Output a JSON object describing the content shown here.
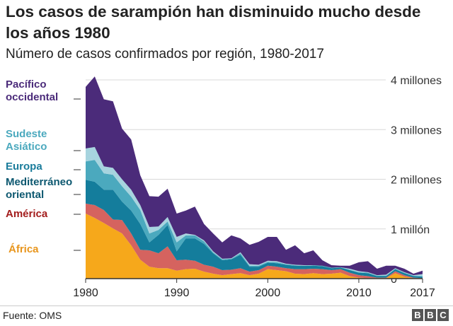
{
  "title": "Los casos de sarampión han disminuido mucho desde los años 1980",
  "subtitle": "Número de casos confirmados por región, 1980-2017",
  "source": "Fuente: OMS",
  "logo": [
    "B",
    "B",
    "C"
  ],
  "chart_data": {
    "type": "area",
    "stacked": true,
    "title": "Los casos de sarampión han disminuido mucho desde los años 1980",
    "subtitle": "Número de casos confirmados por región, 1980-2017",
    "unit": "millones de casos",
    "x": [
      1980,
      1981,
      1982,
      1983,
      1984,
      1985,
      1986,
      1987,
      1988,
      1989,
      1990,
      1991,
      1992,
      1993,
      1994,
      1995,
      1996,
      1997,
      1998,
      1999,
      2000,
      2001,
      2002,
      2003,
      2004,
      2005,
      2006,
      2007,
      2008,
      2009,
      2010,
      2011,
      2012,
      2013,
      2014,
      2015,
      2016,
      2017
    ],
    "xlim": [
      1980,
      2017
    ],
    "ylim": [
      0,
      4
    ],
    "x_ticks": [
      "1980",
      "1990",
      "2000",
      "2010",
      "2017"
    ],
    "x_tick_values": [
      1980,
      1990,
      2000,
      2010,
      2017
    ],
    "y_ticks": [
      "0",
      "1 millón",
      "2 millones",
      "3 millones",
      "4 millones"
    ],
    "y_tick_values": [
      0,
      1,
      2,
      3,
      4
    ],
    "grid": true,
    "legend": "left, inline labels",
    "series": [
      {
        "name": "África",
        "color": "#f6a81b",
        "label_color": "#e8951c",
        "values": [
          1.31,
          1.22,
          1.12,
          1.01,
          0.91,
          0.67,
          0.38,
          0.24,
          0.21,
          0.21,
          0.16,
          0.19,
          0.2,
          0.14,
          0.1,
          0.07,
          0.09,
          0.11,
          0.07,
          0.1,
          0.19,
          0.17,
          0.15,
          0.1,
          0.09,
          0.11,
          0.09,
          0.1,
          0.12,
          0.05,
          0.02,
          0.01,
          0.01,
          0.01,
          0.11,
          0.04,
          0.01,
          0.01
        ]
      },
      {
        "name": "América",
        "color": "#d5635f",
        "label_color": "#a31d1d",
        "values": [
          0.2,
          0.26,
          0.26,
          0.18,
          0.27,
          0.24,
          0.2,
          0.33,
          0.3,
          0.44,
          0.21,
          0.19,
          0.16,
          0.14,
          0.14,
          0.1,
          0.09,
          0.1,
          0.07,
          0.07,
          0.07,
          0.07,
          0.06,
          0.09,
          0.1,
          0.09,
          0.1,
          0.07,
          0.07,
          0.07,
          0.05,
          0.04,
          0.01,
          0.01,
          0.04,
          0.03,
          0.01,
          0.0
        ]
      },
      {
        "name": "Mediterráneo oriental",
        "color": "#147d9c",
        "label_color": "#0d5870",
        "values": [
          0.48,
          0.47,
          0.41,
          0.6,
          0.37,
          0.46,
          0.52,
          0.16,
          0.37,
          0.43,
          0.18,
          0.43,
          0.45,
          0.42,
          0.27,
          0.2,
          0.21,
          0.27,
          0.1,
          0.07,
          0.06,
          0.07,
          0.07,
          0.07,
          0.07,
          0.06,
          0.06,
          0.04,
          0.03,
          0.05,
          0.05,
          0.06,
          0.03,
          0.03,
          0.04,
          0.04,
          0.03,
          0.03
        ]
      },
      {
        "name": "Europa",
        "color": "#4ba9be",
        "label_color": "#1a7c9b",
        "values": [
          0.37,
          0.44,
          0.33,
          0.3,
          0.31,
          0.28,
          0.28,
          0.18,
          0.1,
          0.07,
          0.18,
          0.06,
          0.06,
          0.05,
          0.02,
          0.02,
          0.01,
          0.03,
          0.02,
          0.02,
          0.02,
          0.02,
          0.01,
          0.01,
          0.0,
          0.01,
          0.01,
          0.01,
          0.01,
          0.01,
          0.01,
          0.01,
          0.01,
          0.01,
          0.01,
          0.01,
          0.01,
          0.01
        ]
      },
      {
        "name": "Sudeste Asiático",
        "color": "#a7d4df",
        "label_color": "#4ba9be",
        "values": [
          0.26,
          0.26,
          0.14,
          0.14,
          0.14,
          0.14,
          0.1,
          0.13,
          0.07,
          0.09,
          0.11,
          0.04,
          0.01,
          0.02,
          0.02,
          0.01,
          0.01,
          0.02,
          0.03,
          0.02,
          0.02,
          0.02,
          0.01,
          0.01,
          0.01,
          0.0,
          0.0,
          0.0,
          0.0,
          0.02,
          0.02,
          0.01,
          0.01,
          0.02,
          0.01,
          0.01,
          0.01,
          0.04
        ]
      },
      {
        "name": "Pacífico occidental",
        "color": "#4b2b7a",
        "label_color": "#4b2b7a",
        "values": [
          1.24,
          1.42,
          1.35,
          1.34,
          1.02,
          1.01,
          0.6,
          0.62,
          0.6,
          0.57,
          0.47,
          0.46,
          0.57,
          0.33,
          0.36,
          0.33,
          0.46,
          0.28,
          0.39,
          0.46,
          0.48,
          0.49,
          0.28,
          0.39,
          0.24,
          0.3,
          0.11,
          0.05,
          0.03,
          0.06,
          0.18,
          0.22,
          0.13,
          0.18,
          0.05,
          0.07,
          0.03,
          0.07
        ]
      }
    ]
  }
}
